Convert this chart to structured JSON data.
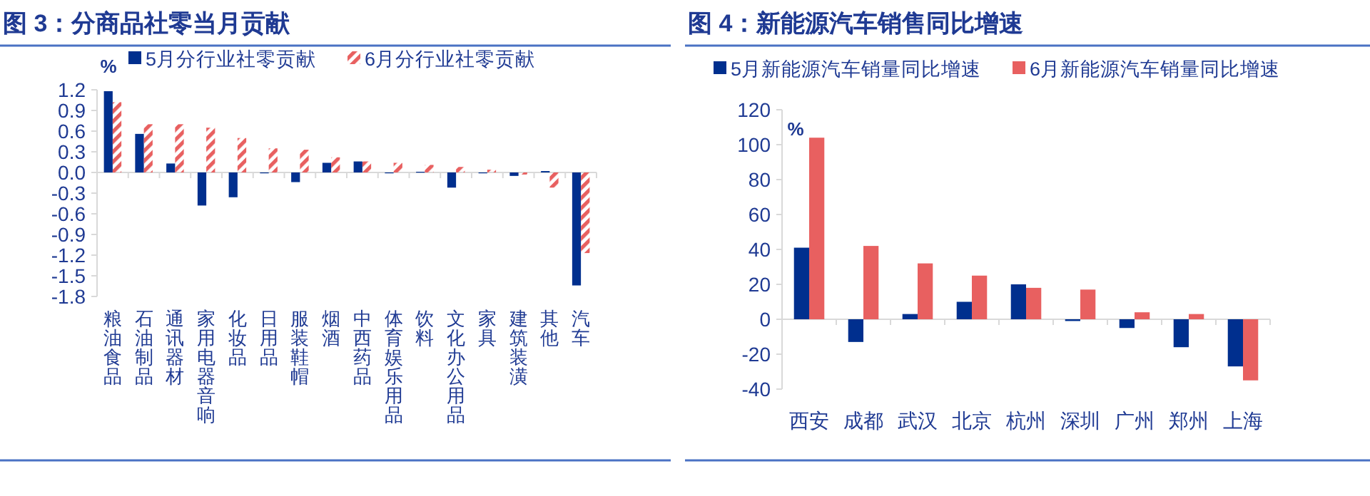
{
  "chart_data": [
    {
      "type": "bar",
      "title": "图 3：分商品社零当月贡献",
      "ylabel": "%",
      "legend": "top",
      "categories": [
        "粮油食品",
        "石油制品",
        "通讯器材",
        "家用电器音响",
        "化妆品",
        "日用品",
        "服装鞋帽",
        "烟酒",
        "中西药品",
        "体育娱乐用品",
        "饮料",
        "文化办公用品",
        "家具",
        "建筑装潢",
        "其他",
        "汽车"
      ],
      "ylim": [
        -1.8,
        1.2
      ],
      "yticks": [
        {
          "value": 1.2,
          "label": "1.2"
        },
        {
          "value": 0.9,
          "label": "0.9"
        },
        {
          "value": 0.6,
          "label": "0.6"
        },
        {
          "value": 0.3,
          "label": "0.3"
        },
        {
          "value": 0,
          "label": "0.0"
        },
        {
          "value": -0.3,
          "label": "-0.3"
        },
        {
          "value": -0.6,
          "label": "-0.6"
        },
        {
          "value": -0.9,
          "label": "-0.9"
        },
        {
          "value": -1.2,
          "label": "-1.2"
        },
        {
          "value": -1.5,
          "label": "-1.5"
        },
        {
          "value": -1.8,
          "label": "-1.8"
        }
      ],
      "series": [
        {
          "name": "5月分行业社零贡献",
          "color": "#002f8e",
          "values": [
            1.18,
            0.56,
            0.13,
            -0.48,
            -0.36,
            0,
            -0.14,
            0.14,
            0.16,
            -0.01,
            0.01,
            -0.22,
            0,
            -0.05,
            0.02,
            -1.64
          ]
        },
        {
          "name": "6月分行业社零贡献",
          "color": "#e86060",
          "values": [
            1.02,
            0.7,
            0.7,
            0.65,
            0.5,
            0.35,
            0.33,
            0.22,
            0.16,
            0.14,
            0.11,
            0.08,
            0.04,
            -0.03,
            -0.22,
            -1.17
          ]
        }
      ]
    },
    {
      "type": "bar",
      "title": "图 4：新能源汽车销售同比增速",
      "ylabel": "%",
      "legend": "top",
      "categories": [
        "西安",
        "成都",
        "武汉",
        "北京",
        "杭州",
        "深圳",
        "广州",
        "郑州",
        "上海"
      ],
      "ylim": [
        -40,
        120
      ],
      "yticks": [
        -40,
        -20,
        0,
        20,
        40,
        60,
        80,
        100,
        120
      ],
      "series": [
        {
          "name": "5月新能源汽车销量同比增速",
          "color": "#002f8e",
          "values": [
            41,
            -13,
            3,
            10,
            20,
            -1,
            -5,
            -16,
            -27
          ]
        },
        {
          "name": "6月新能源汽车销量同比增速",
          "color": "#e86060",
          "values": [
            104,
            42,
            32,
            25,
            18,
            17,
            4,
            3,
            -35
          ]
        }
      ]
    }
  ]
}
